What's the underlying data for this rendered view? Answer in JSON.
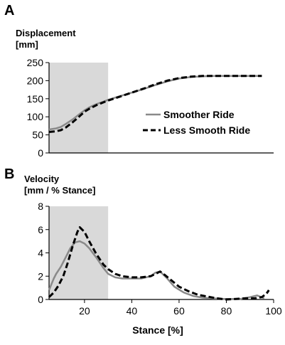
{
  "chart_data": [
    {
      "type": "line",
      "panel": "A",
      "title": "",
      "ylabel_lines": [
        "Displacement",
        "[mm]"
      ],
      "xlabel": "",
      "xlim": [
        5,
        100
      ],
      "ylim": [
        0,
        250
      ],
      "yticks": [
        0,
        50,
        100,
        150,
        200,
        250
      ],
      "xticks": [],
      "shaded_region": [
        5,
        30
      ],
      "legend": "center-right",
      "grid": false,
      "series": [
        {
          "name": "Smoother Ride",
          "color": "#8a8a8a",
          "style": "solid",
          "x": [
            5,
            8,
            10,
            12,
            15,
            18,
            20,
            22,
            25,
            28,
            30,
            35,
            40,
            45,
            50,
            55,
            60,
            65,
            70,
            75,
            80,
            85,
            90,
            95
          ],
          "y": [
            65,
            68,
            72,
            80,
            93,
            108,
            118,
            126,
            135,
            142,
            147,
            157,
            167,
            177,
            188,
            198,
            206,
            210,
            212,
            213,
            213,
            213,
            213,
            213
          ]
        },
        {
          "name": "Less Smooth Ride",
          "color": "#000000",
          "style": "dashed",
          "x": [
            5,
            8,
            10,
            12,
            15,
            18,
            20,
            22,
            25,
            28,
            30,
            35,
            40,
            45,
            50,
            55,
            60,
            65,
            70,
            75,
            80,
            85,
            90,
            95
          ],
          "y": [
            58,
            60,
            63,
            70,
            85,
            102,
            114,
            122,
            132,
            140,
            145,
            156,
            167,
            178,
            190,
            200,
            207,
            211,
            213,
            213,
            213,
            213,
            213,
            213
          ]
        }
      ]
    },
    {
      "type": "line",
      "panel": "B",
      "title": "",
      "ylabel_lines": [
        "Velocity",
        "[mm / % Stance]"
      ],
      "xlabel": "Stance [%]",
      "xlim": [
        5,
        100
      ],
      "ylim": [
        0,
        8
      ],
      "yticks": [
        0,
        2,
        4,
        6,
        8
      ],
      "xticks": [
        20,
        40,
        60,
        80,
        100
      ],
      "shaded_region": [
        5,
        30
      ],
      "grid": false,
      "series": [
        {
          "name": "Smoother Ride",
          "color": "#8a8a8a",
          "style": "solid",
          "x": [
            5,
            6,
            7,
            8,
            10,
            12,
            14,
            16,
            18,
            20,
            22,
            25,
            28,
            30,
            33,
            36,
            40,
            44,
            48,
            50,
            52,
            55,
            58,
            62,
            66,
            70,
            74,
            78,
            82,
            86,
            90,
            93,
            96
          ],
          "y": [
            0.8,
            1.3,
            1.8,
            2.2,
            2.8,
            3.6,
            4.4,
            4.9,
            5.0,
            4.8,
            4.4,
            3.6,
            2.7,
            2.2,
            1.9,
            1.8,
            1.8,
            1.8,
            2.0,
            2.3,
            2.4,
            1.8,
            1.1,
            0.6,
            0.3,
            0.15,
            0.1,
            0.05,
            0.05,
            0.05,
            0.2,
            0.35,
            0.1
          ]
        },
        {
          "name": "Less Smooth Ride",
          "color": "#000000",
          "style": "dashed",
          "x": [
            5,
            7,
            9,
            11,
            13,
            15,
            17,
            18,
            20,
            22,
            25,
            28,
            30,
            33,
            36,
            40,
            44,
            48,
            50,
            52,
            54,
            57,
            60,
            64,
            68,
            72,
            76,
            80,
            84,
            88,
            92,
            95,
            97,
            98
          ],
          "y": [
            0.2,
            0.6,
            1.2,
            2.0,
            3.2,
            4.6,
            5.8,
            6.2,
            5.8,
            5.0,
            3.9,
            3.0,
            2.6,
            2.2,
            2.0,
            1.9,
            1.9,
            2.0,
            2.2,
            2.4,
            2.1,
            1.6,
            1.1,
            0.7,
            0.4,
            0.25,
            0.1,
            0.0,
            0.05,
            0.1,
            0.1,
            0.2,
            0.5,
            0.8
          ]
        }
      ]
    }
  ]
}
